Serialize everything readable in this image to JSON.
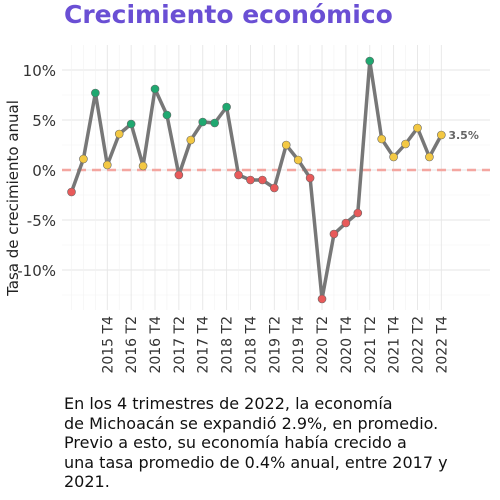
{
  "title": "Crecimiento económico",
  "caption_lines": [
    "En los 4 trimestres de 2022, la economía",
    "de Michoacán se expandió 2.9%, en promedio.",
    "Previo a esto, su economía había crecido a",
    "una tasa promedio de 0.4% anual, entre 2017 y",
    "2021."
  ],
  "chart_data": {
    "type": "line",
    "ylabel": "Tasa de crecimiento anual",
    "xlabel": "",
    "ylim": [
      -13.5,
      12
    ],
    "y_ticks": [
      10,
      5,
      0,
      -5,
      -10
    ],
    "y_tick_labels": [
      "10%",
      "5%",
      "0%",
      "-5%",
      "-10%"
    ],
    "x_tick_labels": [
      "2015 T4",
      "2016 T2",
      "2016 T4",
      "2017 T2",
      "2017 T4",
      "2018 T2",
      "2018 T4",
      "2019 T2",
      "2019 T4",
      "2020 T2",
      "2020 T4",
      "2021 T2",
      "2021 T4",
      "2022 T2",
      "2022 T4"
    ],
    "categories": [
      "2015 T1",
      "2015 T2",
      "2015 T3",
      "2015 T4",
      "2016 T1",
      "2016 T2",
      "2016 T3",
      "2016 T4",
      "2017 T1",
      "2017 T2",
      "2017 T3",
      "2017 T4",
      "2018 T1",
      "2018 T2",
      "2018 T3",
      "2018 T4",
      "2019 T1",
      "2019 T2",
      "2019 T3",
      "2019 T4",
      "2020 T1",
      "2020 T2",
      "2020 T3",
      "2020 T4",
      "2021 T1",
      "2021 T2",
      "2021 T3",
      "2021 T4",
      "2022 T1",
      "2022 T2",
      "2022 T3",
      "2022 T4"
    ],
    "values": [
      -2.2,
      1.1,
      7.7,
      0.5,
      3.6,
      4.6,
      0.4,
      8.1,
      5.5,
      -0.5,
      3.0,
      4.8,
      4.7,
      6.3,
      -0.5,
      -1.0,
      -1.0,
      -1.8,
      2.5,
      1.0,
      -0.8,
      -12.9,
      -6.4,
      -5.3,
      -4.3,
      10.9,
      3.1,
      1.3,
      2.6,
      4.2,
      1.3,
      3.5
    ],
    "last_value_label": "3.5%",
    "point_colors": {
      "negative": "#e85a5a",
      "low": "#f3c843",
      "high": "#1fa870"
    },
    "line_color": "#777777",
    "zero_line_color": "#f4a6a0",
    "grid": true
  }
}
